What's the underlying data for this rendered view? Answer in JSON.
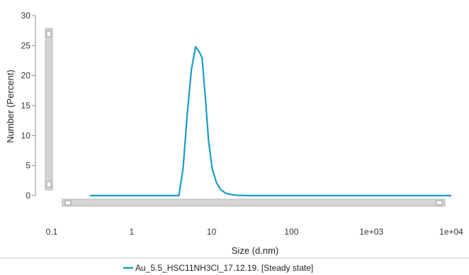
{
  "chart_data": {
    "type": "line",
    "xlabel": "Size (d.nm)",
    "ylabel": "Number (Percent)",
    "xscale": "log",
    "xlim": [
      0.1,
      10000
    ],
    "ylim": [
      0,
      30
    ],
    "x_ticks": [
      0.1,
      1,
      10,
      100,
      1000,
      10000
    ],
    "x_tick_labels": [
      "0.1",
      "1",
      "10",
      "100",
      "1e+03",
      "1e+04"
    ],
    "y_ticks": [
      0,
      5,
      10,
      15,
      20,
      25,
      30
    ],
    "y_tick_labels": [
      "0",
      "5",
      "10",
      "15",
      "20",
      "25",
      "30"
    ],
    "grid": false,
    "legend_position": "bottom",
    "series": [
      {
        "name": "Au_5.5_HSC11NH3Cl_17.12.19. [Steady state]",
        "color": "#1a9bc7",
        "x": [
          0.3,
          1,
          2,
          3.3,
          3.9,
          4.4,
          5.0,
          5.6,
          6.3,
          7.0,
          7.6,
          8.4,
          9.2,
          10.2,
          11.5,
          13,
          15,
          18,
          22,
          30,
          100,
          1000,
          10000
        ],
        "y": [
          0,
          0,
          0,
          0,
          0,
          4.5,
          14,
          21,
          24.8,
          24.0,
          23.0,
          16,
          9,
          4.5,
          2.2,
          1.0,
          0.4,
          0.15,
          0.05,
          0,
          0,
          0,
          0
        ]
      }
    ]
  },
  "legend": {
    "label": "Au_5.5_HSC11NH3Cl_17.12.19. [Steady state]"
  },
  "scrollbars": {
    "vertical_icon": "scrollbar-vertical",
    "horizontal_icon": "scrollbar-horizontal"
  }
}
